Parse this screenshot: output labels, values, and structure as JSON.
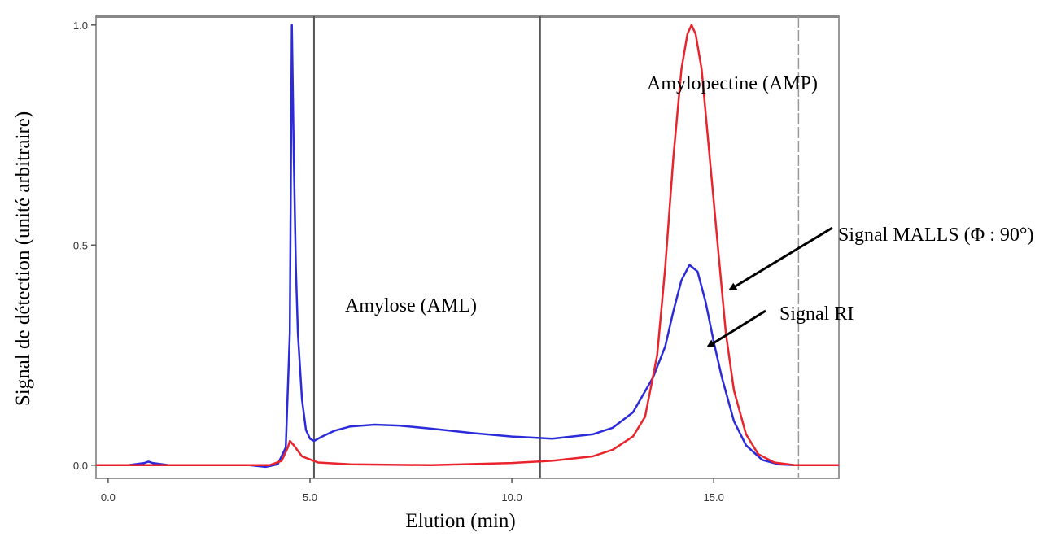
{
  "chart_data": {
    "type": "line",
    "xlabel": "Elution (min)",
    "ylabel": "Signal  de détection  (unité arbitraire)",
    "xlim": [
      -0.3,
      18.1
    ],
    "ylim": [
      -0.03,
      1.02
    ],
    "x_ticks": [
      0,
      5,
      10,
      15
    ],
    "x_tick_labels": [
      "0.0",
      "5.0",
      "10.0",
      "15.0"
    ],
    "y_ticks": [
      0,
      0.5,
      1
    ],
    "y_tick_labels": [
      "0.0",
      "0.5",
      "1.0"
    ],
    "grid": false,
    "legend": "none",
    "vertical_markers": [
      5.1,
      10.7,
      17.1
    ],
    "annotations": {
      "amp": "Amylopectine (AMP)",
      "aml": "Amylose (AML)",
      "malls": "Signal  MALLS (Φ : 90°)",
      "ri": "Signal  RI"
    },
    "series": [
      {
        "color": "#2b2bd9",
        "x": [
          -0.3,
          0.5,
          0.9,
          1.0,
          1.1,
          1.5,
          2.5,
          3.5,
          3.9,
          4.0,
          4.2,
          4.4,
          4.5,
          4.55,
          4.6,
          4.65,
          4.7,
          4.8,
          4.9,
          5.0,
          5.1,
          5.3,
          5.6,
          6.0,
          6.6,
          7.2,
          8.0,
          9.0,
          10.0,
          11.0,
          12.0,
          12.5,
          13.0,
          13.5,
          13.8,
          14.0,
          14.2,
          14.4,
          14.6,
          14.8,
          15.0,
          15.2,
          15.5,
          15.8,
          16.2,
          16.6,
          17.0,
          18.1
        ],
        "y": [
          0.0,
          0.0,
          0.005,
          0.008,
          0.005,
          0.0,
          0.0,
          0.0,
          -0.004,
          -0.002,
          0.002,
          0.04,
          0.3,
          1.0,
          0.7,
          0.45,
          0.3,
          0.15,
          0.08,
          0.06,
          0.055,
          0.065,
          0.078,
          0.088,
          0.092,
          0.09,
          0.083,
          0.073,
          0.065,
          0.06,
          0.07,
          0.085,
          0.12,
          0.2,
          0.27,
          0.35,
          0.42,
          0.455,
          0.44,
          0.37,
          0.28,
          0.2,
          0.1,
          0.045,
          0.012,
          0.002,
          0.0,
          0.0
        ]
      },
      {
        "color": "#e8242c",
        "x": [
          -0.3,
          4.0,
          4.3,
          4.45,
          4.5,
          4.6,
          4.8,
          5.2,
          6.0,
          8.0,
          10.0,
          11.0,
          12.0,
          12.5,
          13.0,
          13.3,
          13.6,
          13.8,
          14.0,
          14.2,
          14.35,
          14.45,
          14.55,
          14.7,
          14.9,
          15.1,
          15.3,
          15.5,
          15.8,
          16.1,
          16.5,
          17.0,
          18.1
        ],
        "y": [
          0.0,
          0.0,
          0.01,
          0.04,
          0.055,
          0.045,
          0.02,
          0.006,
          0.002,
          0.0,
          0.005,
          0.01,
          0.02,
          0.035,
          0.065,
          0.11,
          0.25,
          0.45,
          0.7,
          0.9,
          0.98,
          1.0,
          0.98,
          0.9,
          0.7,
          0.5,
          0.3,
          0.17,
          0.07,
          0.025,
          0.006,
          0.0,
          0.0
        ]
      }
    ]
  }
}
